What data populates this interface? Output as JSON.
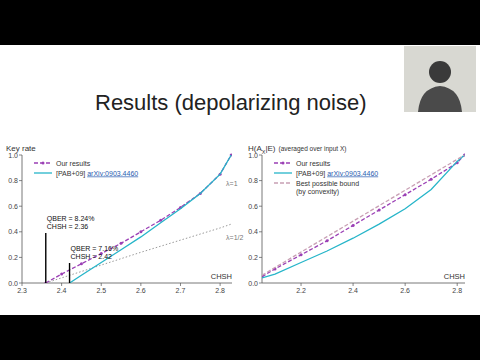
{
  "title": "Results (depolarizing noise)",
  "chart_data": [
    {
      "type": "line",
      "ylabel": "Key rate",
      "xlabel": "CHSH",
      "xlim": [
        2.3,
        2.83
      ],
      "ylim": [
        0,
        1
      ],
      "xticks": [
        2.3,
        2.4,
        2.5,
        2.6,
        2.7,
        2.8
      ],
      "yticks": [
        {
          "value": 0,
          "label": "0.0"
        },
        {
          "value": 0.2,
          "label": "0.2"
        },
        {
          "value": 0.4,
          "label": "0.4"
        },
        {
          "value": 0.6,
          "label": "0.6"
        },
        {
          "value": 0.8,
          "label": "0.8"
        },
        {
          "value": 1,
          "label": "1.0"
        }
      ],
      "legend": "top-left",
      "series": [
        {
          "name": "Our results",
          "color": "#9b3fb5",
          "line_style": "dashed",
          "marker": "circle",
          "x": [
            2.36,
            2.4,
            2.45,
            2.5,
            2.55,
            2.6,
            2.65,
            2.7,
            2.75,
            2.8,
            2.828
          ],
          "values": [
            0,
            0.07,
            0.15,
            0.23,
            0.31,
            0.4,
            0.49,
            0.59,
            0.7,
            0.85,
            1.0
          ]
        },
        {
          "name": "[PAB+09] arXiv:0903.4460",
          "color": "#26b5c9",
          "line_style": "solid",
          "x": [
            2.42,
            2.45,
            2.5,
            2.55,
            2.6,
            2.65,
            2.7,
            2.75,
            2.8,
            2.828
          ],
          "values": [
            0,
            0.06,
            0.16,
            0.26,
            0.36,
            0.47,
            0.58,
            0.7,
            0.85,
            1.0
          ]
        }
      ],
      "reference_lines": [
        {
          "label": "λ=1",
          "color": "#9a9a9a",
          "line_style": "dotted",
          "x": [
            2.7,
            2.75,
            2.8,
            2.828
          ],
          "values": [
            0.59,
            0.7,
            0.85,
            1.0
          ]
        },
        {
          "label": "λ=1/2",
          "color": "#9a9a9a",
          "line_style": "dotted",
          "x": [
            2.36,
            2.6,
            2.8,
            2.828
          ],
          "values": [
            0,
            0.24,
            0.43,
            0.46
          ]
        }
      ],
      "annotations": [
        {
          "x": 2.36,
          "lines": [
            "QBER = 8.24%",
            "CHSH = 2.36"
          ]
        },
        {
          "x": 2.42,
          "lines": [
            "QBER = 7.16%",
            "CHSH = 2.42"
          ]
        }
      ]
    },
    {
      "type": "line",
      "ylabel": [
        "H(A",
        "X",
        "|E)",
        "(averaged over input X)"
      ],
      "xlabel": "CHSH",
      "xlim": [
        2.05,
        2.83
      ],
      "ylim": [
        0,
        1
      ],
      "xticks": [
        2.2,
        2.4,
        2.6,
        2.8
      ],
      "yticks": [
        {
          "value": 0,
          "label": "0.0"
        },
        {
          "value": 0.2,
          "label": "0.2"
        },
        {
          "value": 0.4,
          "label": "0.4"
        },
        {
          "value": 0.6,
          "label": "0.6"
        },
        {
          "value": 0.8,
          "label": "0.8"
        },
        {
          "value": 1,
          "label": "1.0"
        }
      ],
      "legend": "top-left",
      "series": [
        {
          "name": "Our results",
          "color": "#9b3fb5",
          "line_style": "dashed",
          "marker": "circle",
          "x": [
            2.05,
            2.1,
            2.2,
            2.3,
            2.4,
            2.5,
            2.6,
            2.7,
            2.8,
            2.828
          ],
          "values": [
            0.05,
            0.11,
            0.22,
            0.33,
            0.45,
            0.57,
            0.69,
            0.81,
            0.94,
            1.0
          ]
        },
        {
          "name": "[PAB+09] arXiv:0903.4460",
          "color": "#26b5c9",
          "line_style": "solid",
          "x": [
            2.05,
            2.1,
            2.2,
            2.3,
            2.4,
            2.5,
            2.6,
            2.7,
            2.8,
            2.828
          ],
          "values": [
            0.04,
            0.07,
            0.16,
            0.25,
            0.35,
            0.46,
            0.58,
            0.73,
            0.95,
            1.0
          ]
        },
        {
          "name": "Best possible bound (by convexity)",
          "color": "#c8a0b4",
          "line_style": "dashed",
          "x": [
            2.05,
            2.1,
            2.3,
            2.5,
            2.7,
            2.828
          ],
          "values": [
            0.06,
            0.121,
            0.362,
            0.604,
            0.845,
            1.0
          ]
        }
      ]
    }
  ]
}
